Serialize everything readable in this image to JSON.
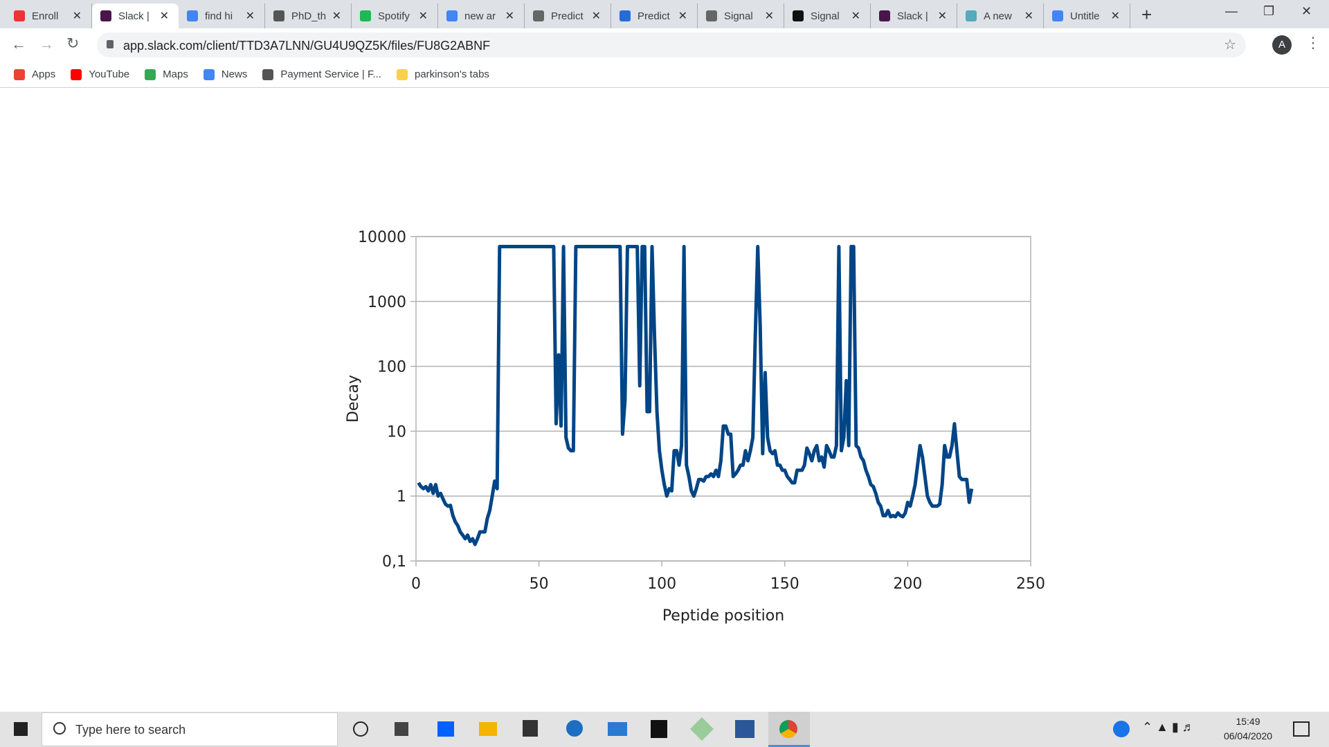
{
  "ui": {
    "tabs": [
      "Enroll",
      "Slack |",
      "find hi",
      "PhD_th",
      "Spotify",
      "new ar",
      "Predict",
      "Predict",
      "Signal",
      "Signal",
      "Slack |",
      "A new",
      "Untitle"
    ],
    "url": "app.slack.com/client/TTD3A7LNN/GU4U9QZ5K/files/FU8G2ABNF",
    "bookmarks": [
      "Apps",
      "YouTube",
      "Maps",
      "News",
      "Payment Service | F...",
      "parkinson's tabs"
    ],
    "search_placeholder": "Type here to search",
    "time": "15:49",
    "date": "06/04/2020",
    "profile": "A"
  },
  "chart_data": {
    "type": "line",
    "x_label": "Peptide position",
    "y_label": "Decay",
    "xlim": [
      0,
      250
    ],
    "xticks": [
      0,
      50,
      100,
      150,
      200,
      250
    ],
    "ylim": [
      0.1,
      10000
    ],
    "log_y": true,
    "yticks": [
      {
        "value": 0.1,
        "label": "0,1"
      },
      1,
      10,
      100,
      1000,
      10000
    ],
    "grid": true,
    "x": [
      1,
      2,
      3,
      4,
      5,
      6,
      7,
      8,
      9,
      10,
      11,
      12,
      13,
      14,
      15,
      16,
      17,
      18,
      19,
      20,
      21,
      22,
      23,
      24,
      25,
      26,
      27,
      28,
      29,
      30,
      31,
      32,
      33,
      34,
      35,
      36,
      37,
      38,
      39,
      40,
      41,
      42,
      43,
      44,
      45,
      46,
      47,
      48,
      49,
      50,
      51,
      52,
      53,
      54,
      55,
      56,
      57,
      58,
      59,
      60,
      61,
      62,
      63,
      64,
      65,
      66,
      67,
      68,
      69,
      70,
      71,
      72,
      73,
      74,
      75,
      76,
      77,
      78,
      79,
      80,
      81,
      82,
      83,
      84,
      85,
      86,
      87,
      88,
      89,
      90,
      91,
      92,
      93,
      94,
      95,
      96,
      97,
      98,
      99,
      100,
      101,
      102,
      103,
      104,
      105,
      106,
      107,
      108,
      109,
      110,
      111,
      112,
      113,
      114,
      115,
      116,
      117,
      118,
      119,
      120,
      121,
      122,
      123,
      124,
      125,
      126,
      127,
      128,
      129,
      130,
      131,
      132,
      133,
      134,
      135,
      136,
      137,
      138,
      139,
      140,
      141,
      142,
      143,
      144,
      145,
      146,
      147,
      148,
      149,
      150,
      151,
      152,
      153,
      154,
      155,
      156,
      157,
      158,
      159,
      160,
      161,
      162,
      163,
      164,
      165,
      166,
      167,
      168,
      169,
      170,
      171,
      172,
      173,
      174,
      175,
      176,
      177,
      178,
      179,
      180,
      181,
      182,
      183,
      184,
      185,
      186,
      187,
      188,
      189,
      190,
      191,
      192,
      193,
      194,
      195,
      196,
      197,
      198,
      199,
      200,
      201,
      202,
      203,
      204,
      205,
      206,
      207,
      208,
      209,
      210,
      211,
      212,
      213,
      214,
      215,
      216,
      217,
      218,
      219,
      220,
      221,
      222,
      223,
      224,
      225,
      226
    ],
    "series": [
      {
        "color": "#004586",
        "values": [
          1.6,
          1.4,
          1.3,
          1.4,
          1.2,
          1.5,
          1.1,
          1.5,
          1.0,
          1.1,
          0.9,
          0.75,
          0.7,
          0.72,
          0.5,
          0.4,
          0.35,
          0.28,
          0.25,
          0.22,
          0.25,
          0.2,
          0.22,
          0.18,
          0.22,
          0.28,
          0.28,
          0.28,
          0.45,
          0.6,
          1.0,
          1.7,
          1.3,
          7000,
          7000,
          7000,
          7000,
          7000,
          7000,
          7000,
          7000,
          7000,
          7000,
          7000,
          7000,
          7000,
          7000,
          7000,
          7000,
          7000,
          7000,
          7000,
          7000,
          7000,
          7000,
          7000,
          13,
          150,
          12,
          7000,
          8,
          5.5,
          5,
          5,
          7000,
          7000,
          7000,
          7000,
          7000,
          7000,
          7000,
          7000,
          7000,
          7000,
          7000,
          7000,
          7000,
          7000,
          7000,
          7000,
          7000,
          7000,
          7000,
          9,
          30,
          7000,
          7000,
          7000,
          7000,
          7000,
          50,
          7000,
          7000,
          20,
          20,
          7000,
          300,
          20,
          5,
          2.5,
          1.5,
          1.0,
          1.3,
          1.2,
          5,
          5,
          3,
          6,
          7000,
          3,
          2,
          1.2,
          1.0,
          1.3,
          1.8,
          1.8,
          1.7,
          2,
          2,
          2.2,
          2,
          2.5,
          2,
          3.5,
          12,
          12,
          9,
          9,
          2,
          2.2,
          2.5,
          3,
          3,
          5,
          3.5,
          5,
          8,
          300,
          7000,
          400,
          4.5,
          80,
          8,
          5,
          4.5,
          5,
          3,
          3,
          2.5,
          2.5,
          2,
          1.8,
          1.6,
          1.6,
          2.5,
          2.5,
          2.5,
          3,
          5.5,
          4.5,
          3.5,
          5,
          6,
          3.5,
          4,
          2.8,
          6,
          5,
          4,
          4,
          6,
          7000,
          5,
          8,
          60,
          6,
          7000,
          7000,
          6,
          5.5,
          4,
          3.5,
          2.5,
          2,
          1.5,
          1.4,
          1.1,
          0.8,
          0.7,
          0.5,
          0.5,
          0.6,
          0.48,
          0.5,
          0.48,
          0.55,
          0.5,
          0.48,
          0.55,
          0.8,
          0.7,
          1.0,
          1.5,
          3,
          6,
          4,
          2,
          1.0,
          0.8,
          0.7,
          0.7,
          0.7,
          0.75,
          1.5,
          6,
          4,
          4,
          6,
          13,
          5,
          2,
          1.8,
          1.8,
          1.8,
          0.8,
          1.3
        ]
      }
    ]
  }
}
